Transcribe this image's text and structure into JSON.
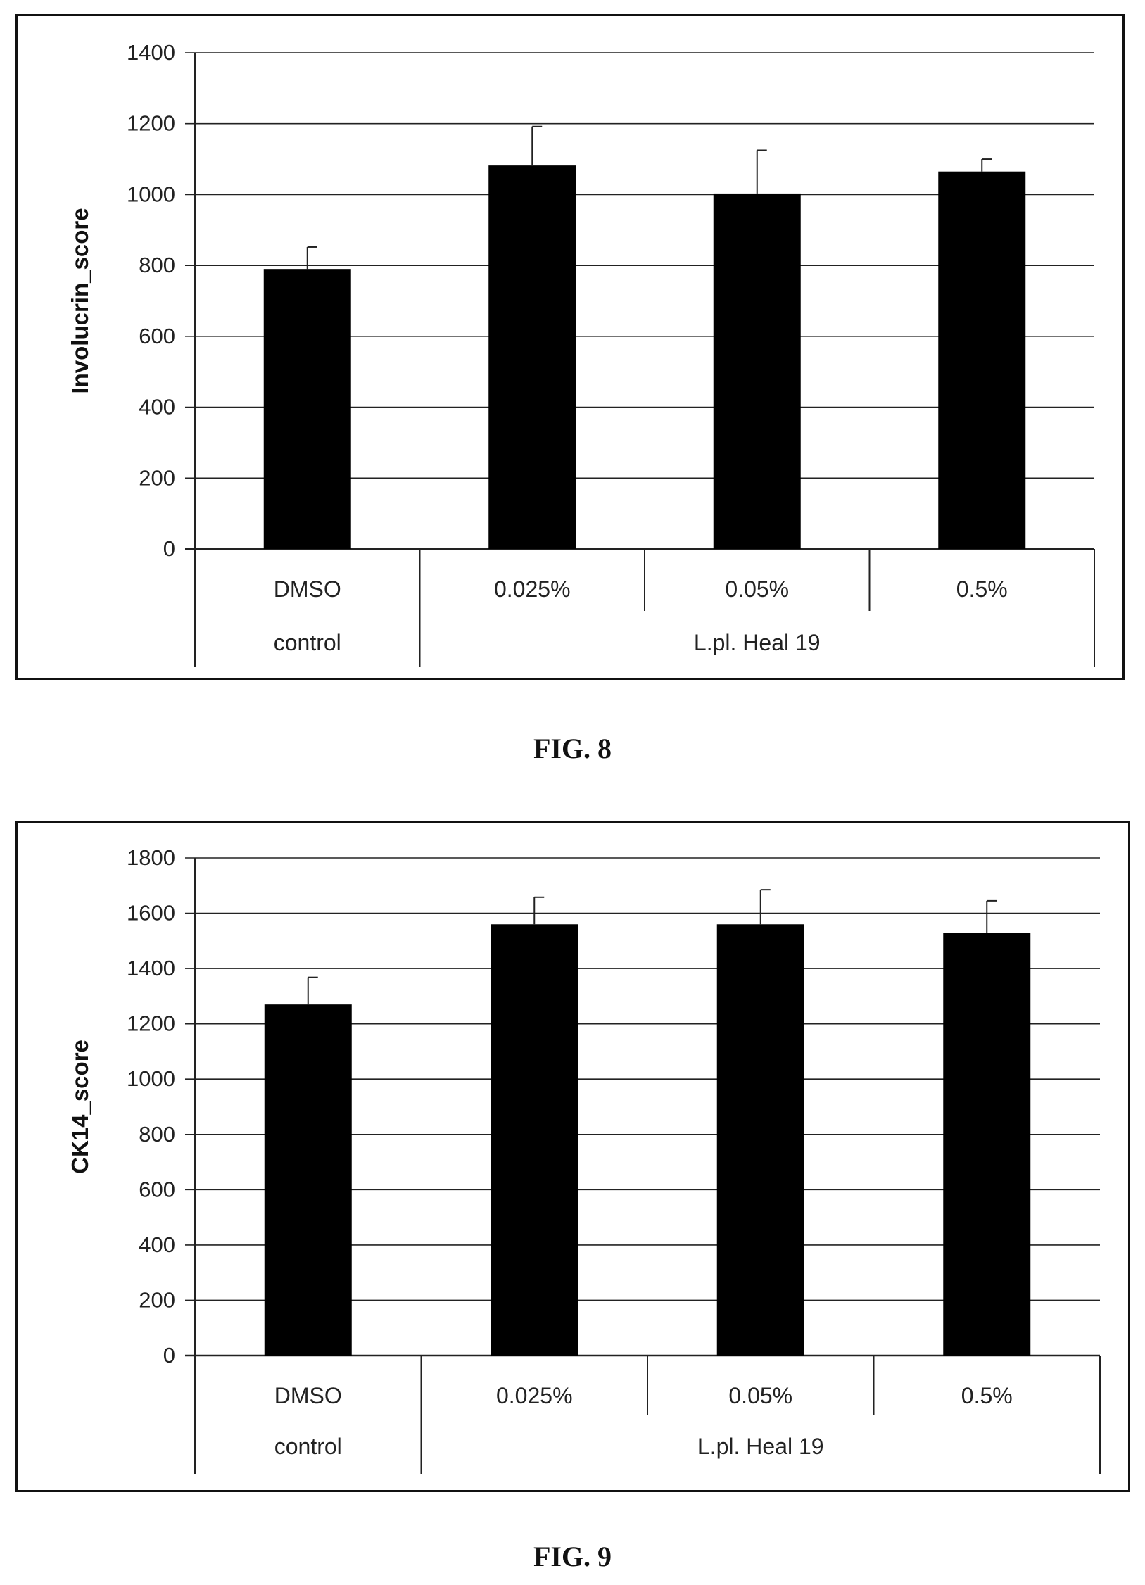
{
  "figures": [
    {
      "caption": "FIG. 8",
      "chart_data": {
        "type": "bar",
        "title": "",
        "xlabel": "",
        "ylabel": "Involucrin_score",
        "ylim": [
          0,
          1400
        ],
        "yticks": [
          "0",
          "200",
          "400",
          "600",
          "800",
          "1000",
          "1200",
          "1400"
        ],
        "grid": true,
        "categories": [
          "DMSO",
          "0.025%",
          "0.05%",
          "0.5%"
        ],
        "groups": [
          {
            "label": "control",
            "span": 1
          },
          {
            "label": "L.pl. Heal 19",
            "span": 3
          }
        ],
        "values": [
          790,
          1082,
          1003,
          1065
        ],
        "errors": [
          62,
          110,
          122,
          35
        ],
        "bar_color": "#000000"
      }
    },
    {
      "caption": "FIG. 9",
      "chart_data": {
        "type": "bar",
        "title": "",
        "xlabel": "",
        "ylabel": "CK14_score",
        "ylim": [
          0,
          1800
        ],
        "yticks": [
          "0",
          "200",
          "400",
          "600",
          "800",
          "1000",
          "1200",
          "1400",
          "1600",
          "1800"
        ],
        "grid": true,
        "categories": [
          "DMSO",
          "0.025%",
          "0.05%",
          "0.5%"
        ],
        "groups": [
          {
            "label": "control",
            "span": 1
          },
          {
            "label": "L.pl. Heal 19",
            "span": 3
          }
        ],
        "values": [
          1270,
          1560,
          1560,
          1530
        ],
        "errors": [
          98,
          98,
          125,
          115
        ],
        "bar_color": "#000000"
      }
    }
  ]
}
